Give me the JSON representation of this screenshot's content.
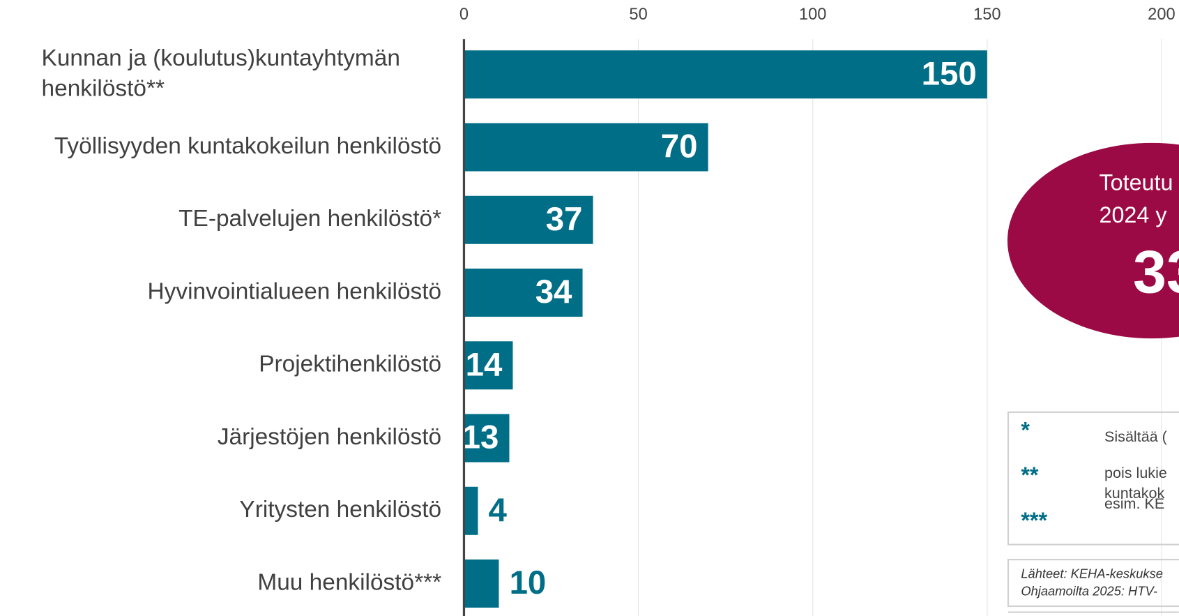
{
  "chart_data": {
    "type": "bar",
    "orientation": "horizontal",
    "categories": [
      "Kunnan ja (koulutus)kuntayhtymän henkilöstö**",
      "Työllisyyden kuntakokeilun henkilöstö",
      "TE-palvelujen henkilöstö*",
      "Hyvinvointialueen henkilöstö",
      "Projektihenkilöstö",
      "Järjestöjen henkilöstö",
      "Yritysten henkilöstö",
      "Muu henkilöstö***"
    ],
    "values": [
      150,
      70,
      37,
      34,
      14,
      13,
      4,
      10
    ],
    "color": "#006e87",
    "xlim": [
      0,
      200
    ],
    "xticks": [
      0,
      50,
      100,
      150,
      200
    ],
    "grid": true,
    "callout": {
      "lines": [
        "Toteutu",
        "2024 y"
      ],
      "value": "33",
      "color": "#9b0a45"
    },
    "footnotes": [
      {
        "marker": "*",
        "lines": [
          "Sisältää ("
        ]
      },
      {
        "marker": "**",
        "lines": [
          "pois lukie",
          "kuntakok"
        ]
      },
      {
        "marker": "***",
        "lines": [
          "esim. KE"
        ]
      }
    ],
    "sources": [
      "Lähteet: KEHA-keskukse",
      "Ohjaamoilta 2025: HTV-"
    ]
  }
}
